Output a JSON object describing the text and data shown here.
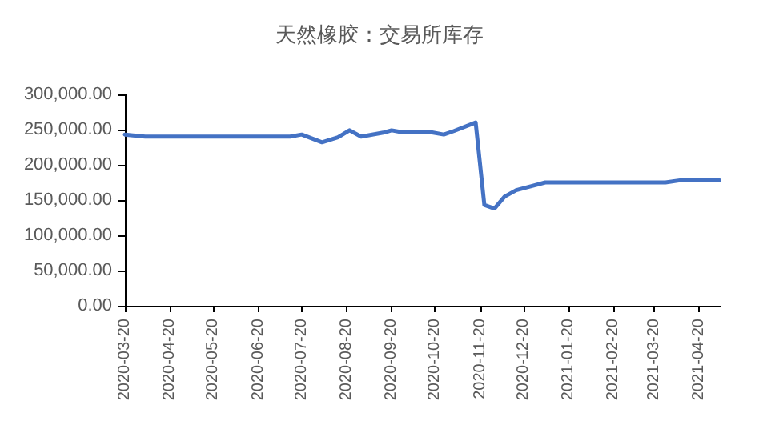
{
  "chart_data": {
    "type": "line",
    "title": "天然橡胶：交易所库存",
    "x": [
      "2020-03-20",
      "2020-04-03",
      "2020-07-12",
      "2020-07-20",
      "2020-08-03",
      "2020-08-14",
      "2020-08-22",
      "2020-08-30",
      "2020-09-15",
      "2020-09-20",
      "2020-09-28",
      "2020-10-18",
      "2020-10-26",
      "2020-11-02",
      "2020-11-17",
      "2020-11-23",
      "2020-11-30",
      "2020-12-07",
      "2020-12-15",
      "2020-12-26",
      "2021-01-04",
      "2021-03-28",
      "2021-04-07",
      "2021-05-04"
    ],
    "series": [
      {
        "color": "#4472c4",
        "values": [
          243000,
          240000,
          240000,
          243000,
          232000,
          239000,
          249000,
          240000,
          246000,
          249000,
          246000,
          246000,
          243000,
          248000,
          260000,
          143000,
          138000,
          155000,
          164000,
          170000,
          175000,
          175000,
          178000,
          178000
        ]
      }
    ],
    "xlim": [
      "2020-03-20",
      "2021-05-05"
    ],
    "xticks": [
      "2020-03-20",
      "2020-04-20",
      "2020-05-20",
      "2020-06-20",
      "2020-07-20",
      "2020-08-20",
      "2020-09-20",
      "2020-10-20",
      "2020-11-20",
      "2020-12-20",
      "2021-01-20",
      "2021-02-20",
      "2021-03-20",
      "2021-04-20"
    ],
    "ylim": [
      0,
      300000
    ],
    "yticks": [
      {
        "value": 0,
        "label": "0.00"
      },
      {
        "value": 50000,
        "label": "50,000.00"
      },
      {
        "value": 100000,
        "label": "100,000.00"
      },
      {
        "value": 150000,
        "label": "150,000.00"
      },
      {
        "value": 200000,
        "label": "200,000.00"
      },
      {
        "value": 250000,
        "label": "250,000.00"
      },
      {
        "value": 300000,
        "label": "300,000.00"
      }
    ],
    "grid": false,
    "marker": "none",
    "line_style": "solid"
  }
}
